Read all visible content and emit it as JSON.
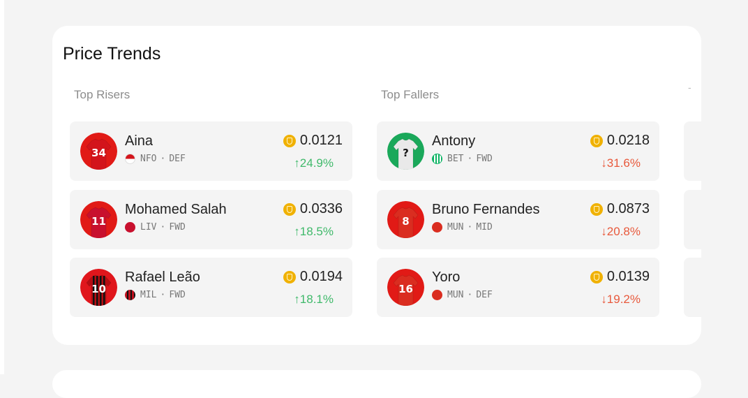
{
  "page": {
    "title": "Price Trends"
  },
  "risers": {
    "title": "Top Risers",
    "players": [
      {
        "name": "Aina",
        "club": "NFO",
        "position": "DEF",
        "price": "0.0121",
        "change": "24.9%",
        "number": "34",
        "shirt": "#d3141b",
        "flag": "nfo"
      },
      {
        "name": "Mohamed Salah",
        "club": "LIV",
        "position": "FWD",
        "price": "0.0336",
        "change": "18.5%",
        "number": "11",
        "shirt": "#c8102e",
        "flag": "liv"
      },
      {
        "name": "Rafael Leão",
        "club": "MIL",
        "position": "FWD",
        "price": "0.0194",
        "change": "18.1%",
        "number": "10",
        "shirt": "#b50d12",
        "flag": "mil"
      }
    ]
  },
  "fallers": {
    "title": "Top Fallers",
    "players": [
      {
        "name": "Antony",
        "club": "BET",
        "position": "FWD",
        "price": "0.0218",
        "change": "31.6%",
        "number": "?",
        "shirt": "#e9e9e9",
        "flag": "bet"
      },
      {
        "name": "Bruno Fernandes",
        "club": "MUN",
        "position": "MID",
        "price": "0.0873",
        "change": "20.8%",
        "number": "8",
        "shirt": "#da2d20",
        "flag": "mun"
      },
      {
        "name": "Yoro",
        "club": "MUN",
        "position": "DEF",
        "price": "0.0139",
        "change": "19.2%",
        "number": "16",
        "shirt": "#da2d20",
        "flag": "mun"
      }
    ]
  },
  "icons": {
    "coin": "coin-icon",
    "up": "arrow-up-icon",
    "down": "arrow-down-icon"
  },
  "colors": {
    "up": "#3fb96a",
    "down": "#e8593c",
    "coin": "#f0b100"
  },
  "symbols": {
    "up": "↑",
    "down": "↓",
    "sep": "·"
  },
  "partial_column_label": "-"
}
